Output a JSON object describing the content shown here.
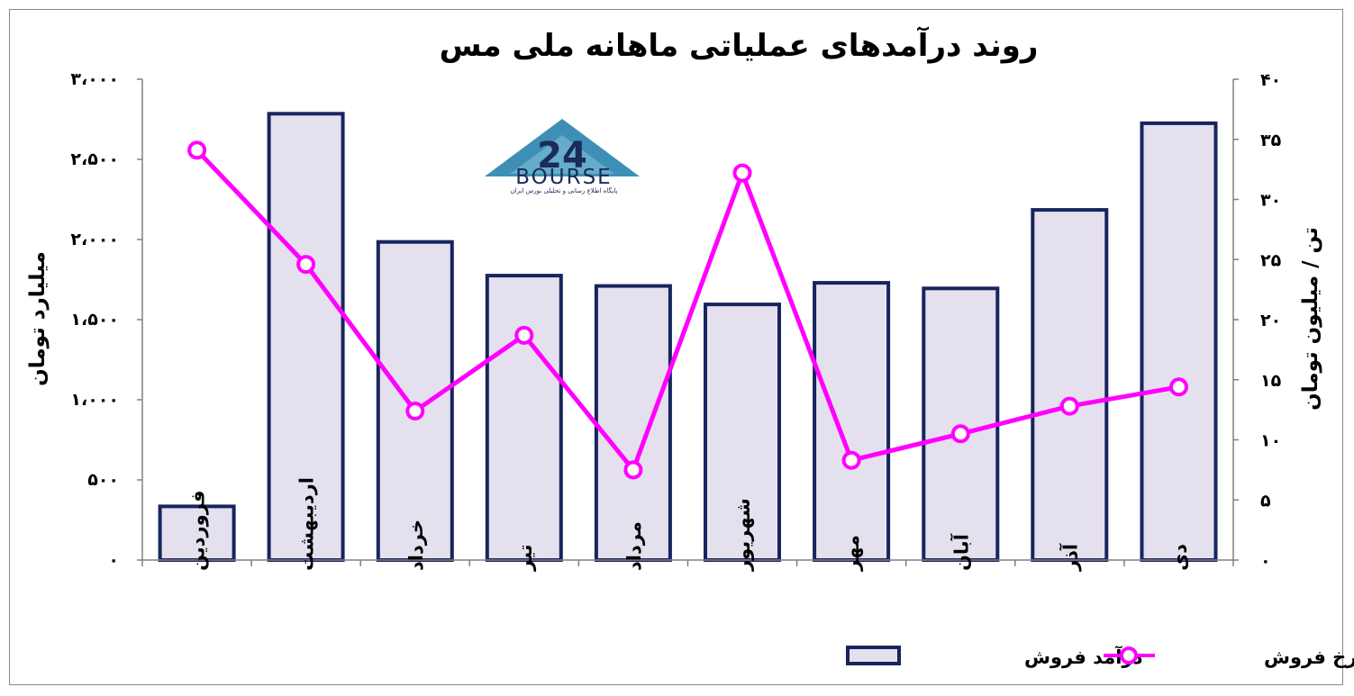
{
  "chart_data": {
    "type": "bar",
    "title": "روند درآمدهای عملیاتی ماهانه ملی مس",
    "categories": [
      "فروردین",
      "اردیبهشت",
      "خرداد",
      "تیر",
      "مرداد",
      "شهریور",
      "مهر",
      "آبان",
      "آذر",
      "دی"
    ],
    "series": [
      {
        "name": "درآمد فروش",
        "type": "bar",
        "axis": "left",
        "color": "#e5e0ee",
        "edge_color": "#17255e",
        "values": [
          335,
          2785,
          1985,
          1775,
          1710,
          1595,
          1730,
          1695,
          2185,
          2725
        ]
      },
      {
        "name": "نرخ فروش",
        "type": "line",
        "axis": "right",
        "color": "#ff00ff",
        "values": [
          34.1,
          24.6,
          12.4,
          18.7,
          7.5,
          32.2,
          8.3,
          10.5,
          12.8,
          14.4
        ]
      }
    ],
    "y_left": {
      "label": "میلیارد تومان",
      "ylim": [
        0,
        3000
      ],
      "ticks": [
        0,
        500,
        1000,
        1500,
        2000,
        2500,
        3000
      ],
      "tick_labels": [
        "۰",
        "۵۰۰",
        "۱،۰۰۰",
        "۱،۵۰۰",
        "۲،۰۰۰",
        "۲،۵۰۰",
        "۳،۰۰۰"
      ]
    },
    "y_right": {
      "label": "تن / میلیون تومان",
      "ylim": [
        0,
        40
      ],
      "ticks": [
        0,
        5,
        10,
        15,
        20,
        25,
        30,
        35,
        40
      ],
      "tick_labels": [
        "۰",
        "۵",
        "۱۰",
        "۱۵",
        "۲۰",
        "۲۵",
        "۳۰",
        "۳۵",
        "۴۰"
      ]
    },
    "grid": false,
    "legend_position": "bottom-right"
  },
  "logo": {
    "name": "24-bourse-logo",
    "number": "24",
    "word": "BOURSE",
    "subtitle": "پایگاه اطلاع رسانی و تحلیلی بورس ایران"
  }
}
